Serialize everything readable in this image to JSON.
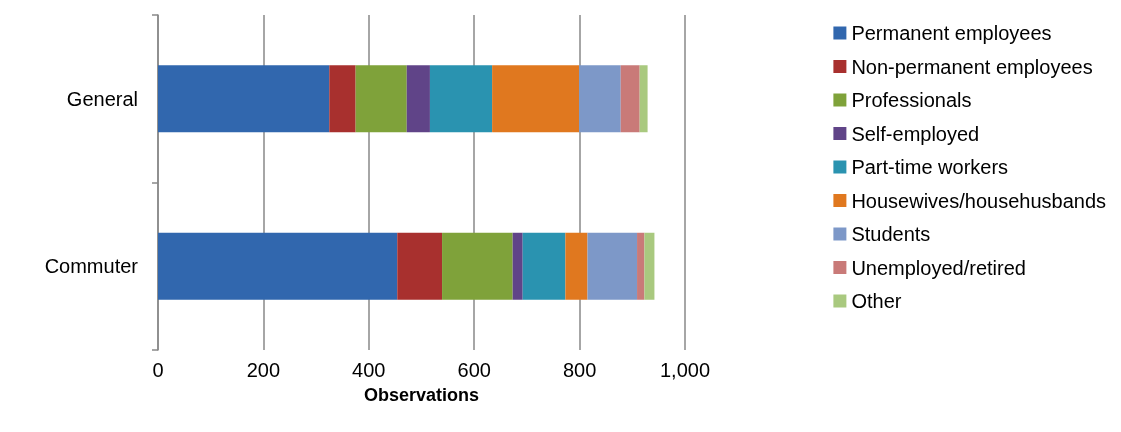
{
  "chart_data": {
    "type": "bar",
    "orientation": "horizontal",
    "stacked": true,
    "categories": [
      "General",
      "Commuter"
    ],
    "series": [
      {
        "name": "Permanent employees",
        "color": "#3167ae",
        "values": [
          325,
          454
        ]
      },
      {
        "name": "Non-permanent employees",
        "color": "#a8302e",
        "values": [
          50,
          85
        ]
      },
      {
        "name": "Professionals",
        "color": "#7fa23a",
        "values": [
          97,
          134
        ]
      },
      {
        "name": "Self-employed",
        "color": "#604488",
        "values": [
          44,
          19
        ]
      },
      {
        "name": "Part-time workers",
        "color": "#2a93b0",
        "values": [
          118,
          81
        ]
      },
      {
        "name": "Housewives/househusbands",
        "color": "#e0781f",
        "values": [
          165,
          42
        ]
      },
      {
        "name": "Students",
        "color": "#7d98c8",
        "values": [
          79,
          94
        ]
      },
      {
        "name": "Unemployed/retired",
        "color": "#c97a78",
        "values": [
          36,
          14
        ]
      },
      {
        "name": "Other",
        "color": "#a9c97f",
        "values": [
          15,
          19
        ]
      }
    ],
    "xlim": [
      0,
      1000
    ],
    "xticks": [
      0,
      200,
      400,
      600,
      800,
      {
        "value": 1000,
        "label": "1,000"
      }
    ],
    "xlabel": "Observations",
    "grid": "x",
    "legend": "right"
  }
}
